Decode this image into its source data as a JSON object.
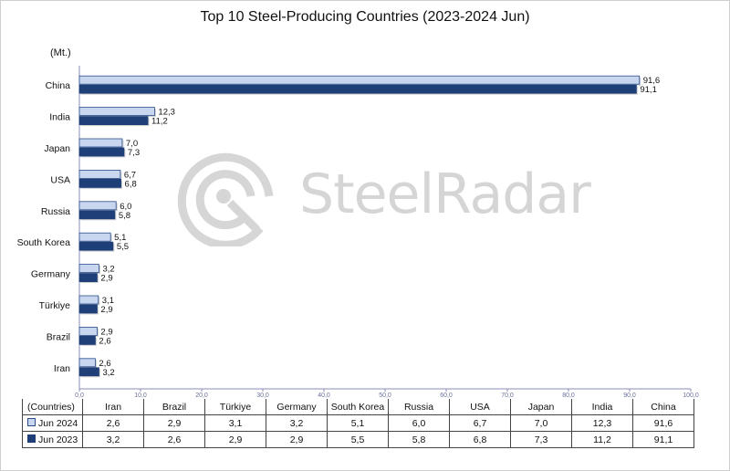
{
  "chart_data": {
    "type": "bar",
    "orientation": "horizontal",
    "title": "Top 10 Steel-Producing Countries (2023-2024 Jun)",
    "unit_label": "(Mt.)",
    "categories": [
      "Iran",
      "Brazil",
      "Türkiye",
      "Germany",
      "South Korea",
      "Russia",
      "USA",
      "Japan",
      "India",
      "China"
    ],
    "series": [
      {
        "name": "Jun 2024",
        "values": [
          2.6,
          2.9,
          3.1,
          3.2,
          5.1,
          6.0,
          6.7,
          7.0,
          12.3,
          91.6
        ],
        "labels": [
          "2,6",
          "2,9",
          "3,1",
          "3,2",
          "5,1",
          "6,0",
          "6,7",
          "7,0",
          "12,3",
          "91,6"
        ],
        "color": "#c9d6f0"
      },
      {
        "name": "Jun 2023",
        "values": [
          3.2,
          2.6,
          2.9,
          2.9,
          5.5,
          5.8,
          6.8,
          7.3,
          11.2,
          91.1
        ],
        "labels": [
          "3,2",
          "2,6",
          "2,9",
          "2,9",
          "5,5",
          "5,8",
          "6,8",
          "7,3",
          "11,2",
          "91,1"
        ],
        "color": "#1f3f78"
      }
    ],
    "xlim": [
      0,
      100
    ],
    "x_ticks": [
      0,
      10,
      20,
      30,
      40,
      50,
      60,
      70,
      80,
      90,
      100
    ],
    "x_tick_labels": [
      "0,0",
      "10,0",
      "20,0",
      "30,0",
      "40,0",
      "50,0",
      "60,0",
      "70,0",
      "80,0",
      "90,0",
      "100,0"
    ],
    "grid": false,
    "legend": "data-table"
  },
  "table": {
    "corner_label": "(Countries)"
  },
  "watermark": {
    "text": "SteelRadar"
  },
  "colors": {
    "axis": "#8a8fb8",
    "label": "#111111"
  }
}
